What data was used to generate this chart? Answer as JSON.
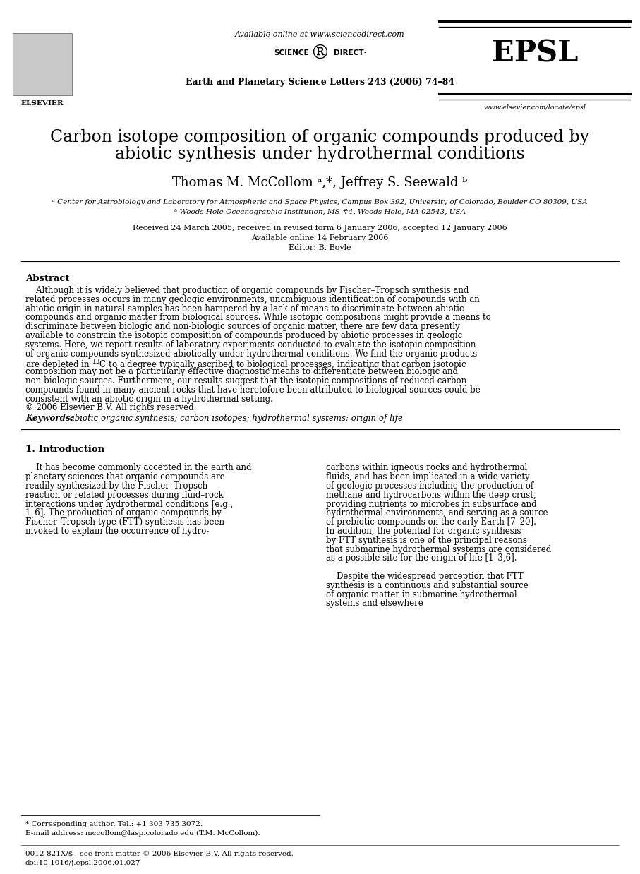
{
  "bg_color": "#ffffff",
  "available_online": "Available online at www.sciencedirect.com",
  "journal_line": "Earth and Planetary Science Letters 243 (2006) 74–84",
  "epsl_text": "EPSL",
  "website": "www.elsevier.com/locate/epsl",
  "elsevier_label": "ELSEVIER",
  "title_line1": "Carbon isotope composition of organic compounds produced by",
  "title_line2": "abiotic synthesis under hydrothermal conditions",
  "authors": "Thomas M. McCollom ᵃ,*, Jeffrey S. Seewald ᵇ",
  "affil_a": "ᵃ Center for Astrobiology and Laboratory for Atmospheric and Space Physics, Campus Box 392, University of Colorado, Boulder CO 80309, USA",
  "affil_b": "ᵇ Woods Hole Oceanographic Institution, MS #4, Woods Hole, MA 02543, USA",
  "received_line": "Received 24 March 2005; received in revised form 6 January 2006; accepted 12 January 2006",
  "available_line": "Available online 14 February 2006",
  "editor_line": "Editor: B. Boyle",
  "abstract_heading": "Abstract",
  "abstract_para": "Although it is widely believed that production of organic compounds by Fischer–Tropsch synthesis and related processes occurs in many geologic environments, unambiguous identification of compounds with an abiotic origin in natural samples has been hampered by a lack of means to discriminate between abiotic compounds and organic matter from biological sources. While isotopic compositions might provide a means to discriminate between biologic and non-biologic sources of organic matter, there are few data presently available to constrain the isotopic composition of compounds produced by abiotic processes in geologic systems. Here, we report results of laboratory experiments conducted to evaluate the isotopic composition of organic compounds synthesized abiotically under hydrothermal conditions. We find the organic products are depleted in 13C to a degree typically ascribed to biological processes, indicating that carbon isotopic composition may not be a particularly effective diagnostic means to differentiate between biologic and non-biologic sources. Furthermore, our results suggest that the isotopic compositions of reduced carbon compounds found in many ancient rocks that have heretofore been attributed to biological sources could be consistent with an abiotic origin in a hydrothermal setting.",
  "copyright_line": "© 2006 Elsevier B.V. All rights reserved.",
  "keywords_label": "Keywords:",
  "keywords": " abiotic organic synthesis; carbon isotopes; hydrothermal systems; origin of life",
  "sec1_heading": "1. Introduction",
  "sec1_col1_para": "It has become commonly accepted in the earth and planetary sciences that organic compounds are readily synthesized by the Fischer–Tropsch reaction or related processes during fluid–rock interactions under hydrothermal conditions [e.g., 1–6]. The production of organic compounds by Fischer–Tropsch-type (FTT) synthesis has been invoked to explain the occurrence of hydro-",
  "sec1_col2_para1": "carbons within igneous rocks and hydrothermal fluids, and has been implicated in a wide variety of geologic processes including the production of methane and hydrocarbons within the deep crust, providing nutrients to microbes in subsurface and hydrothermal environments, and serving as a source of prebiotic compounds on the early Earth [7–20]. In addition, the potential for organic synthesis by FTT synthesis is one of the principal reasons that submarine hydrothermal systems are considered as a possible site for the origin of life [1–3,6].",
  "sec1_col2_para2": "Despite the widespread perception that FTT synthesis is a continuous and substantial source of organic matter in submarine hydrothermal systems and elsewhere",
  "footnote1": "* Corresponding author. Tel.: +1 303 735 3072.",
  "footnote2": "E-mail address: mccollom@lasp.colorado.edu (T.M. McCollom).",
  "footnote3": "0012-821X/$ - see front matter © 2006 Elsevier B.V. All rights reserved.",
  "footnote4": "doi:10.1016/j.epsl.2006.01.027"
}
